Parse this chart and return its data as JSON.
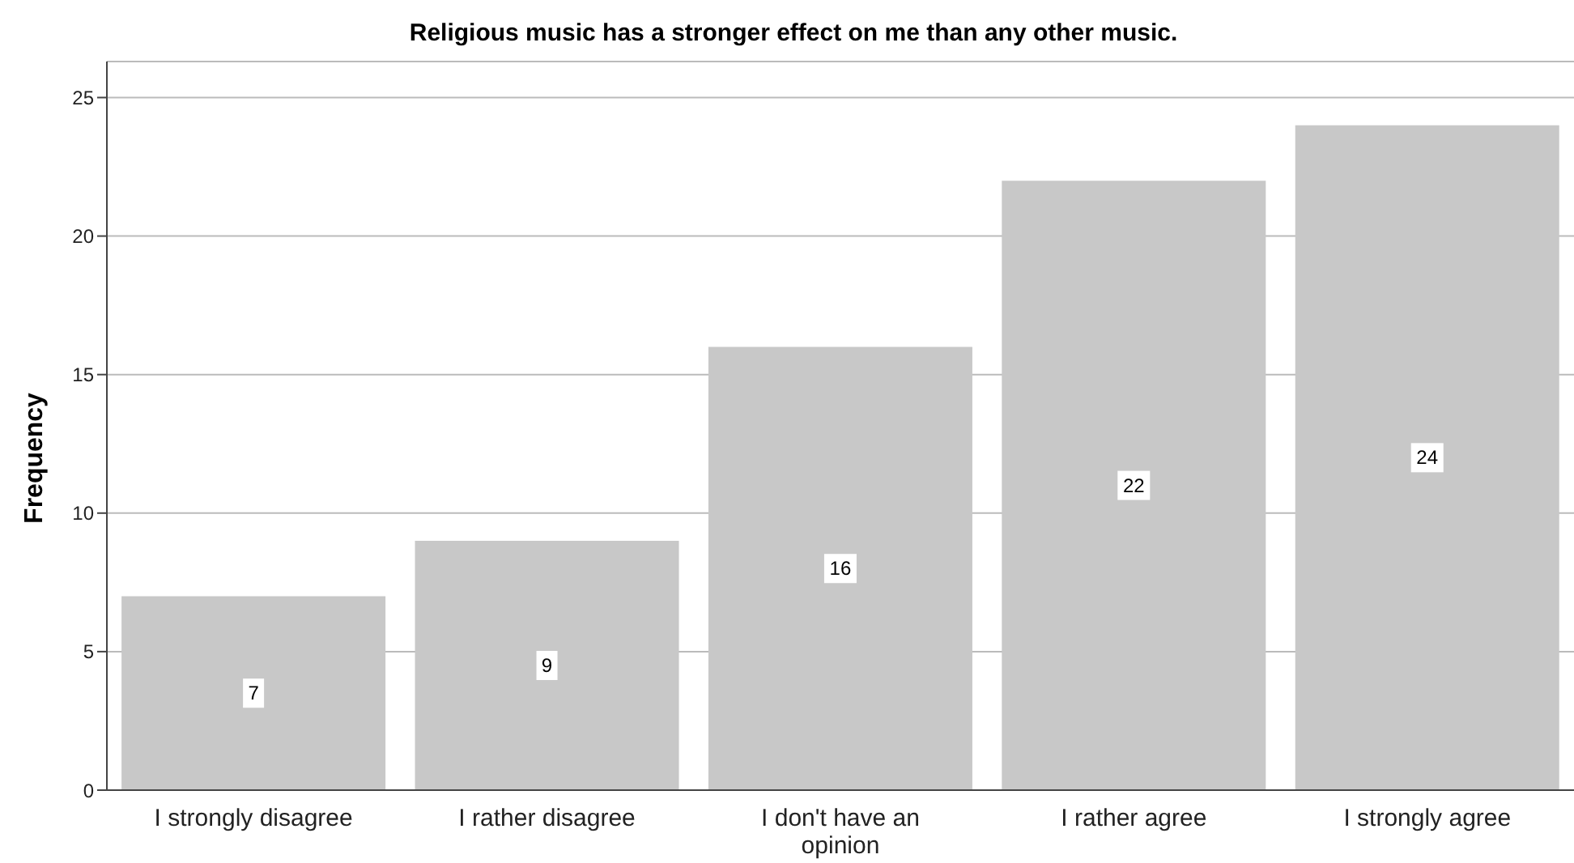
{
  "chart_data": {
    "type": "bar",
    "title": "Religious music has a stronger effect on me than any other music.",
    "ylabel": "Frequency",
    "categories": [
      "I strongly disagree",
      "I rather disagree",
      "I don't have an opinion",
      "I rather agree",
      "I strongly agree"
    ],
    "values": [
      7,
      9,
      16,
      22,
      24
    ],
    "color": "#c8c8c8",
    "ylim": [
      0,
      26.3
    ],
    "yticks": [
      0,
      5,
      10,
      15,
      20,
      25
    ],
    "grid": "y",
    "data_labels": true
  }
}
